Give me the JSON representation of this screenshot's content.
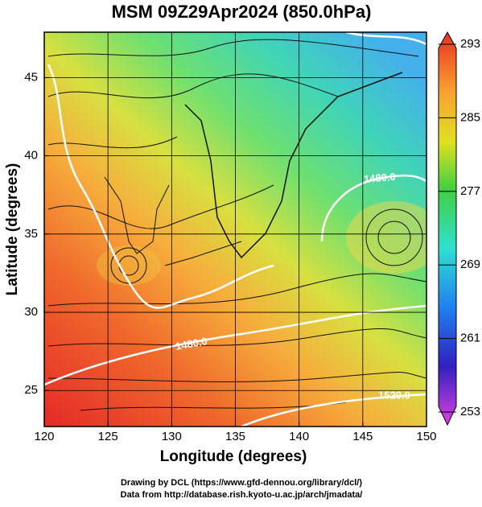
{
  "title": "MSM 09Z29Apr2024 (850.0hPa)",
  "x_axis": {
    "label": "Longitude (degrees)",
    "lim": [
      120,
      150
    ],
    "ticks": [
      120,
      125,
      130,
      135,
      140,
      145,
      150
    ]
  },
  "y_axis": {
    "label": "Latitude  (degrees)",
    "lim": [
      22.7,
      47.9
    ],
    "ticks": [
      25,
      30,
      35,
      40,
      45
    ]
  },
  "colorbar": {
    "lim": [
      253,
      293
    ],
    "ticks": [
      253,
      261,
      269,
      277,
      285,
      293
    ]
  },
  "contour_labels": [
    "1480.0",
    "1480.0",
    "1520.0"
  ],
  "footer": [
    "Drawing by DCL (https://www.gfd-dennou.org/library/dcl/)",
    "Data from http://database.rish.kyoto-u.ac.jp/arch/jmadata/"
  ]
}
